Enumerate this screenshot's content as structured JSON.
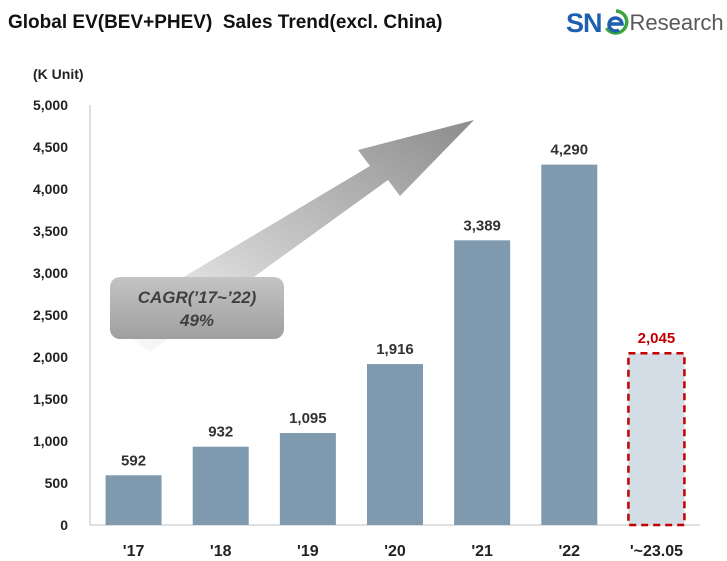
{
  "title": "Global EV(BEV+PHEV)  Sales Trend(excl. China)",
  "logo": {
    "brand": "SNE",
    "text": "Research",
    "green": "#3aa53a",
    "blue": "#1f5fae"
  },
  "unit_label": "(K Unit)",
  "annotation": {
    "line1": "CAGR(’17~’22)",
    "line2": "49%"
  },
  "colors": {
    "bar": "#7f9aae",
    "partial_bar": "#d3dde5",
    "partial_border": "#c00000",
    "partial_label": "#c00000"
  },
  "chart_data": {
    "type": "bar",
    "title": "Global EV(BEV+PHEV)  Sales Trend(excl. China)",
    "ylabel": "(K Unit)",
    "xlabel": "",
    "ylim": [
      0,
      5000
    ],
    "yticks": [
      "0",
      "500",
      "1,000",
      "1,500",
      "2,000",
      "2,500",
      "3,000",
      "3,500",
      "4,000",
      "4,500",
      "5,000"
    ],
    "ytick_values": [
      0,
      500,
      1000,
      1500,
      2000,
      2500,
      3000,
      3500,
      4000,
      4500,
      5000
    ],
    "categories": [
      "'17",
      "'18",
      "'19",
      "'20",
      "'21",
      "'22",
      "'~23.05"
    ],
    "values": [
      592,
      932,
      1095,
      1916,
      3389,
      4290,
      2045
    ],
    "value_labels": [
      "592",
      "932",
      "1,095",
      "1,916",
      "3,389",
      "4,290",
      "2,045"
    ],
    "highlight_index": 6,
    "grid": false,
    "legend": "none"
  }
}
